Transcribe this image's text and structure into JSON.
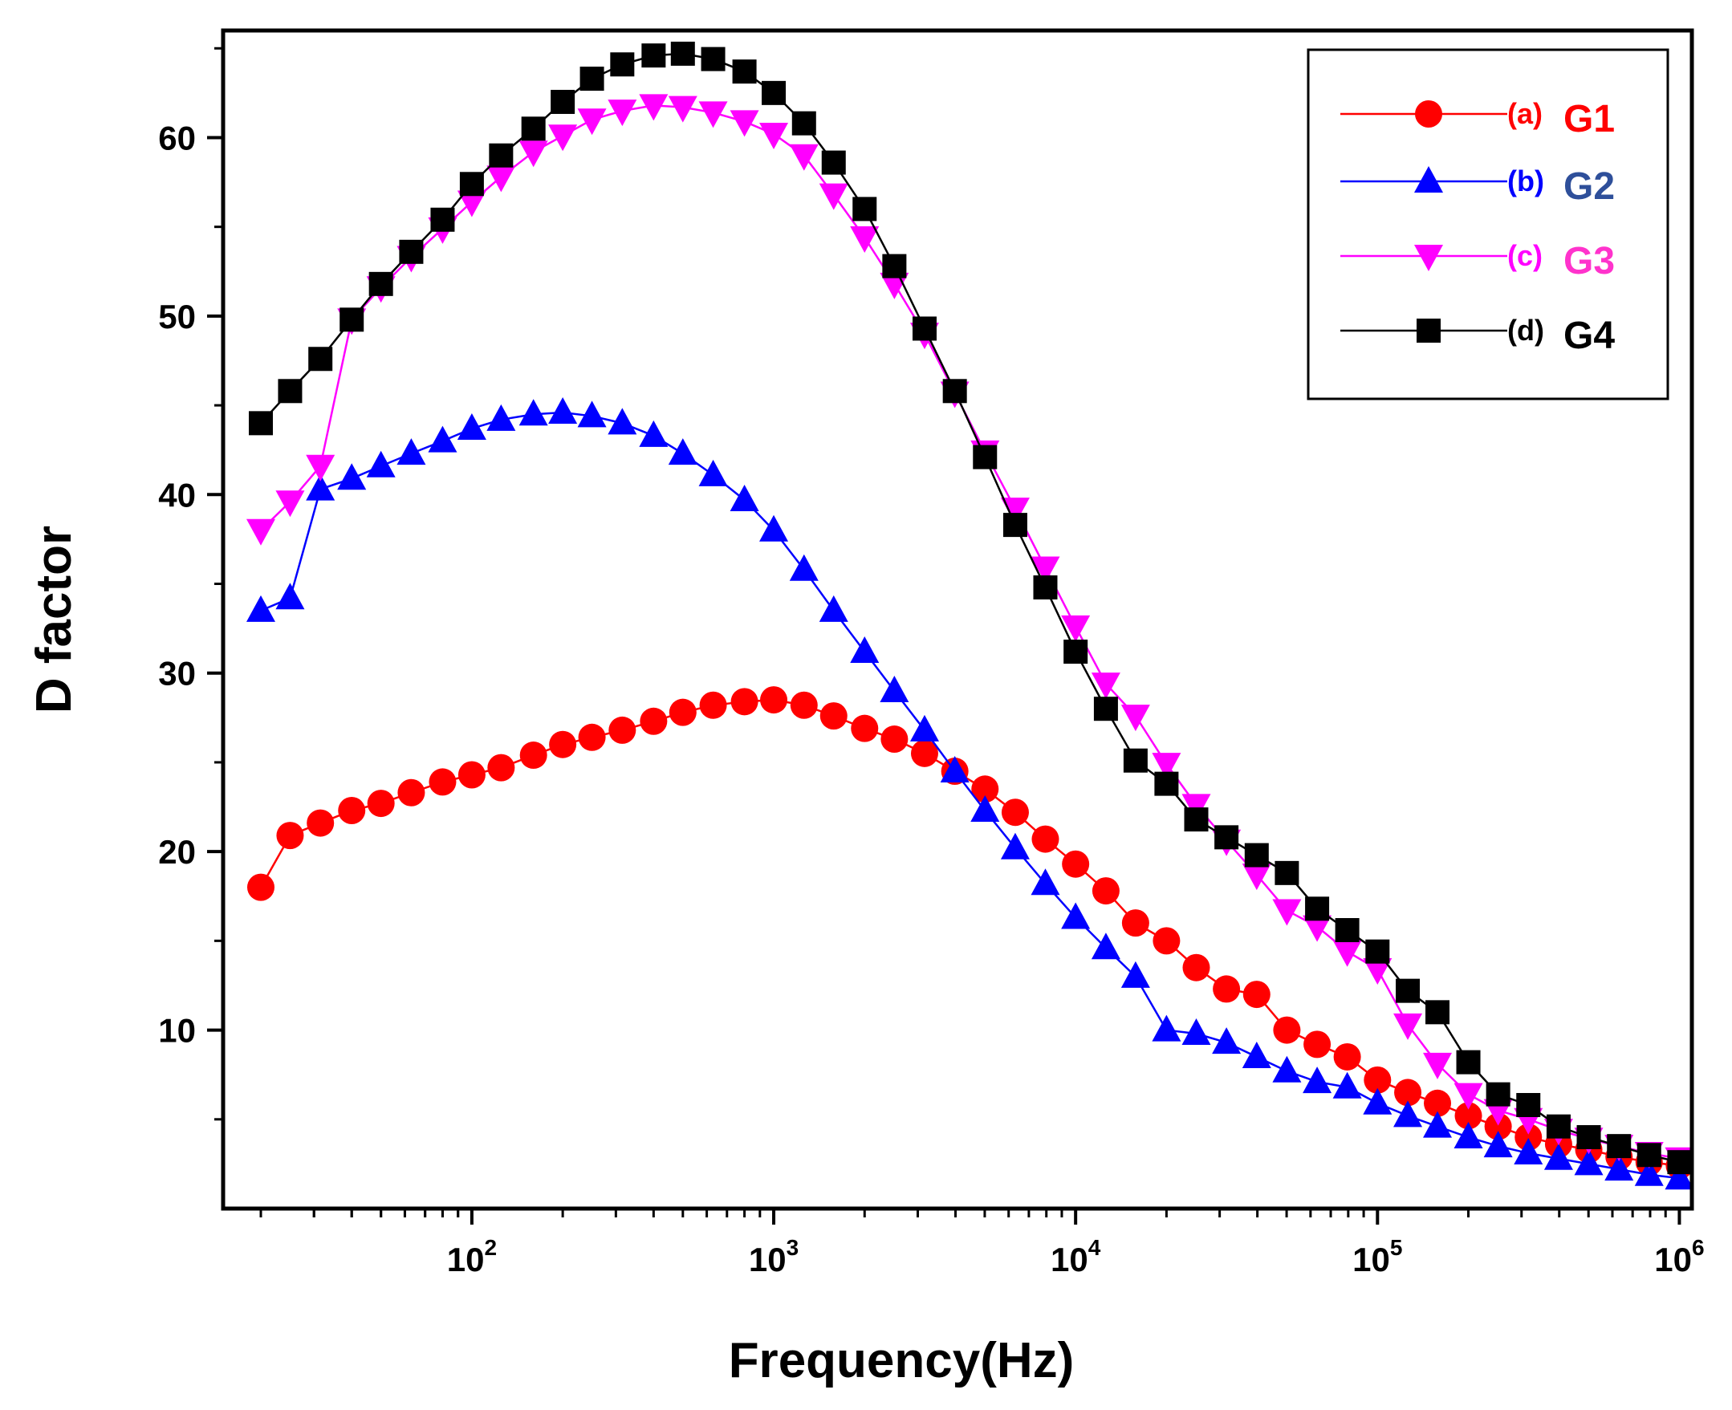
{
  "chart_data": {
    "type": "line",
    "title": "",
    "xlabel": "Frequency(Hz)",
    "ylabel": "D factor",
    "xscale": "log",
    "xlim": [
      15,
      1100000
    ],
    "ylim": [
      0,
      66
    ],
    "grid": false,
    "legend_position": "top-right",
    "x_ticks": [
      {
        "value": 100,
        "base": "10",
        "exp": "2"
      },
      {
        "value": 1000,
        "base": "10",
        "exp": "3"
      },
      {
        "value": 10000,
        "base": "10",
        "exp": "4"
      },
      {
        "value": 100000,
        "base": "10",
        "exp": "5"
      },
      {
        "value": 1000000,
        "base": "10",
        "exp": "6"
      }
    ],
    "y_ticks": [
      {
        "value": 10,
        "label": "10"
      },
      {
        "value": 20,
        "label": "20"
      },
      {
        "value": 30,
        "label": "30"
      },
      {
        "value": 40,
        "label": "40"
      },
      {
        "value": 50,
        "label": "50"
      },
      {
        "value": 60,
        "label": "60"
      }
    ],
    "x": [
      20,
      25,
      31.5,
      40,
      50,
      63,
      80,
      100,
      125,
      160,
      200,
      250,
      315,
      400,
      500,
      630,
      800,
      1000,
      1260,
      1580,
      2000,
      2510,
      3160,
      3980,
      5010,
      6310,
      7940,
      10000,
      12600,
      15800,
      20000,
      25100,
      31600,
      39800,
      50100,
      63100,
      79400,
      100000,
      126000,
      158000,
      200000,
      251000,
      316000,
      398000,
      501000,
      631000,
      794000,
      1000000
    ],
    "series": [
      {
        "name": "G1",
        "tag": "(a)",
        "marker": "circle",
        "line_color": "#ff0000",
        "marker_color": "#ff0000",
        "label_color": "#ff0000",
        "values": [
          18.0,
          20.9,
          21.6,
          22.3,
          22.7,
          23.3,
          23.9,
          24.3,
          24.7,
          25.4,
          26.0,
          26.4,
          26.8,
          27.3,
          27.8,
          28.2,
          28.4,
          28.5,
          28.2,
          27.6,
          26.9,
          26.3,
          25.5,
          24.5,
          23.5,
          22.2,
          20.7,
          19.3,
          17.8,
          16.0,
          15.0,
          13.5,
          12.3,
          12.0,
          10.0,
          9.2,
          8.5,
          7.2,
          6.5,
          5.9,
          5.2,
          4.6,
          4.0,
          3.6,
          3.3,
          2.9,
          2.6,
          2.4
        ]
      },
      {
        "name": "G2",
        "tag": "(b)",
        "marker": "triangle-up",
        "line_color": "#0000ff",
        "marker_color": "#0000ff",
        "label_color": "#2e4f9a",
        "values": [
          33.5,
          34.2,
          40.3,
          40.9,
          41.6,
          42.3,
          43.0,
          43.7,
          44.2,
          44.5,
          44.6,
          44.4,
          44.0,
          43.3,
          42.3,
          41.1,
          39.7,
          38.0,
          35.8,
          33.5,
          31.2,
          29.0,
          26.8,
          24.5,
          22.3,
          20.2,
          18.2,
          16.3,
          14.6,
          13.0,
          10.0,
          9.8,
          9.3,
          8.5,
          7.7,
          7.1,
          6.8,
          5.9,
          5.2,
          4.6,
          4.0,
          3.5,
          3.1,
          2.8,
          2.5,
          2.2,
          1.9,
          1.7
        ]
      },
      {
        "name": "G3",
        "tag": "(c)",
        "marker": "triangle-down",
        "line_color": "#ff00ff",
        "marker_color": "#ff00ff",
        "label_color": "#ff33cc",
        "values": [
          38.0,
          39.6,
          41.6,
          49.8,
          51.6,
          53.3,
          54.9,
          56.4,
          57.8,
          59.2,
          60.1,
          61.0,
          61.5,
          61.8,
          61.7,
          61.4,
          60.9,
          60.2,
          59.0,
          56.8,
          54.4,
          51.8,
          49.0,
          45.7,
          42.4,
          39.2,
          35.9,
          32.6,
          29.4,
          27.6,
          24.9,
          22.6,
          20.6,
          18.7,
          16.7,
          15.8,
          14.4,
          13.4,
          10.3,
          8.1,
          6.4,
          5.5,
          5.0,
          4.4,
          3.9,
          3.5,
          3.1,
          2.8
        ]
      },
      {
        "name": "G4",
        "tag": "(d)",
        "marker": "square",
        "line_color": "#000000",
        "marker_color": "#000000",
        "label_color": "#000000",
        "values": [
          44.0,
          45.8,
          47.6,
          49.8,
          51.8,
          53.6,
          55.4,
          57.4,
          59.0,
          60.5,
          62.0,
          63.3,
          64.1,
          64.6,
          64.7,
          64.4,
          63.7,
          62.5,
          60.8,
          58.6,
          56.0,
          52.8,
          49.3,
          45.8,
          42.1,
          38.3,
          34.8,
          31.2,
          28.0,
          25.1,
          23.8,
          21.8,
          20.8,
          19.8,
          18.8,
          16.8,
          15.6,
          14.4,
          12.2,
          11.0,
          8.2,
          6.4,
          5.8,
          4.6,
          4.0,
          3.5,
          3.0,
          2.6
        ]
      }
    ]
  }
}
